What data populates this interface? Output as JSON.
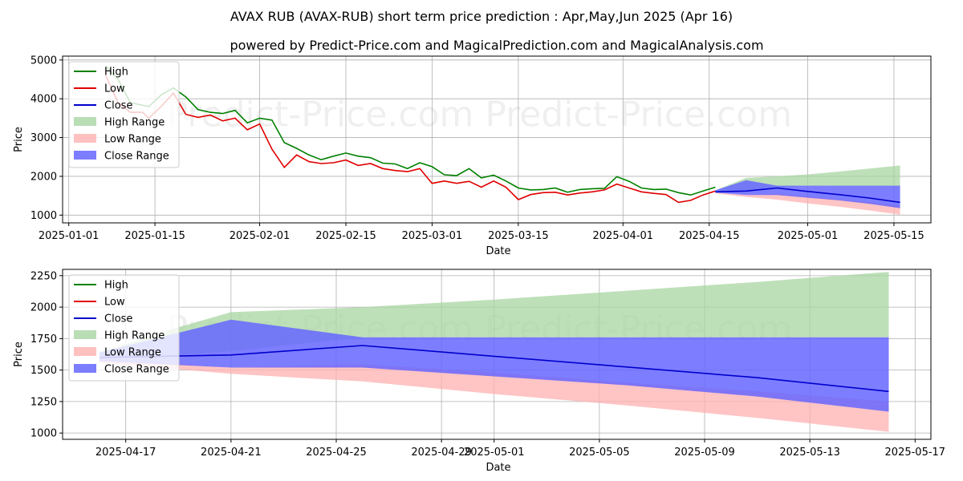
{
  "title_line1": "AVAX RUB (AVAX-RUB) short term price prediction : Apr,May,Jun 2025 (Apr 16)",
  "title_line2": "powered by Predict-Price.com and MagicalPrediction.com and MagicalAnalysis.com",
  "watermark": "Predict-Price.com",
  "colors": {
    "high": "#008000",
    "low": "#e00000",
    "close": "#0000cc",
    "high_range": "#a8d5a2",
    "low_range": "#ffb0b0",
    "close_range": "#6666ff"
  },
  "chart_data": [
    {
      "type": "line",
      "xlabel": "Date",
      "ylabel": "Price",
      "ylim": [
        800,
        5100
      ],
      "yticks": [
        1000,
        2000,
        3000,
        4000,
        5000
      ],
      "xticks": [
        "2025-01-01",
        "2025-01-15",
        "2025-02-01",
        "2025-02-15",
        "2025-03-01",
        "2025-03-15",
        "2025-04-01",
        "2025-04-15",
        "2025-05-01",
        "2025-05-15"
      ],
      "xlim": [
        "2024-12-31",
        "2025-05-21"
      ],
      "legend": [
        "High",
        "Low",
        "Close",
        "High Range",
        "Low Range",
        "Close Range"
      ],
      "legend_position": "top-left",
      "grid": true,
      "series": [
        {
          "name": "High",
          "x": [
            "2025-01-07",
            "2025-01-09",
            "2025-01-11",
            "2025-01-13",
            "2025-01-14",
            "2025-01-16",
            "2025-01-18",
            "2025-01-20",
            "2025-01-22",
            "2025-01-24",
            "2025-01-26",
            "2025-01-28",
            "2025-01-30",
            "2025-02-01",
            "2025-02-03",
            "2025-02-05",
            "2025-02-07",
            "2025-02-09",
            "2025-02-11",
            "2025-02-13",
            "2025-02-15",
            "2025-02-17",
            "2025-02-19",
            "2025-02-21",
            "2025-02-23",
            "2025-02-25",
            "2025-02-27",
            "2025-03-01",
            "2025-03-03",
            "2025-03-05",
            "2025-03-07",
            "2025-03-09",
            "2025-03-11",
            "2025-03-13",
            "2025-03-15",
            "2025-03-17",
            "2025-03-19",
            "2025-03-21",
            "2025-03-23",
            "2025-03-25",
            "2025-03-27",
            "2025-03-29",
            "2025-03-31",
            "2025-04-02",
            "2025-04-04",
            "2025-04-06",
            "2025-04-08",
            "2025-04-10",
            "2025-04-12",
            "2025-04-14",
            "2025-04-16"
          ],
          "values": [
            4850,
            4500,
            3900,
            3830,
            3800,
            4100,
            4280,
            4050,
            3720,
            3650,
            3620,
            3700,
            3380,
            3500,
            3450,
            2870,
            2720,
            2550,
            2430,
            2520,
            2600,
            2520,
            2480,
            2340,
            2320,
            2200,
            2350,
            2250,
            2040,
            2020,
            2200,
            1960,
            2030,
            1880,
            1700,
            1650,
            1660,
            1700,
            1590,
            1660,
            1680,
            1690,
            1990,
            1870,
            1700,
            1660,
            1670,
            1580,
            1520,
            1620,
            1720
          ]
        },
        {
          "name": "Low",
          "x": [
            "2025-01-07",
            "2025-01-09",
            "2025-01-11",
            "2025-01-13",
            "2025-01-14",
            "2025-01-16",
            "2025-01-18",
            "2025-01-20",
            "2025-01-22",
            "2025-01-24",
            "2025-01-26",
            "2025-01-28",
            "2025-01-30",
            "2025-02-01",
            "2025-02-03",
            "2025-02-05",
            "2025-02-07",
            "2025-02-09",
            "2025-02-11",
            "2025-02-13",
            "2025-02-15",
            "2025-02-17",
            "2025-02-19",
            "2025-02-21",
            "2025-02-23",
            "2025-02-25",
            "2025-02-27",
            "2025-03-01",
            "2025-03-03",
            "2025-03-05",
            "2025-03-07",
            "2025-03-09",
            "2025-03-11",
            "2025-03-13",
            "2025-03-15",
            "2025-03-17",
            "2025-03-19",
            "2025-03-21",
            "2025-03-23",
            "2025-03-25",
            "2025-03-27",
            "2025-03-29",
            "2025-03-31",
            "2025-04-02",
            "2025-04-04",
            "2025-04-06",
            "2025-04-08",
            "2025-04-10",
            "2025-04-12",
            "2025-04-14",
            "2025-04-16"
          ],
          "values": [
            4600,
            3900,
            3650,
            3650,
            3500,
            3800,
            4150,
            3600,
            3520,
            3580,
            3430,
            3500,
            3200,
            3350,
            2700,
            2230,
            2550,
            2380,
            2330,
            2350,
            2420,
            2280,
            2330,
            2200,
            2150,
            2120,
            2200,
            1820,
            1880,
            1820,
            1870,
            1720,
            1880,
            1720,
            1400,
            1530,
            1580,
            1590,
            1520,
            1570,
            1600,
            1650,
            1800,
            1700,
            1600,
            1560,
            1530,
            1330,
            1380,
            1520,
            1620
          ]
        },
        {
          "name": "Close",
          "x": [
            "2025-04-16",
            "2025-04-21",
            "2025-04-26",
            "2025-05-01",
            "2025-05-06",
            "2025-05-11",
            "2025-05-16"
          ],
          "values": [
            1600,
            1620,
            1700,
            1610,
            1530,
            1440,
            1330
          ]
        },
        {
          "name": "High Range",
          "x": [
            "2025-04-16",
            "2025-04-21",
            "2025-04-26",
            "2025-05-01",
            "2025-05-06",
            "2025-05-11",
            "2025-05-16"
          ],
          "upper": [
            1640,
            1960,
            2000,
            2050,
            2120,
            2200,
            2280
          ],
          "lower": [
            1580,
            1620,
            1700,
            1750,
            1750,
            1750,
            1750
          ]
        },
        {
          "name": "Low Range",
          "x": [
            "2025-04-16",
            "2025-04-21",
            "2025-04-26",
            "2025-05-01",
            "2025-05-06",
            "2025-05-11",
            "2025-05-16"
          ],
          "upper": [
            1580,
            1520,
            1550,
            1480,
            1400,
            1330,
            1250
          ],
          "lower": [
            1560,
            1470,
            1400,
            1300,
            1220,
            1120,
            1010
          ]
        },
        {
          "name": "Close Range",
          "x": [
            "2025-04-16",
            "2025-04-21",
            "2025-04-26",
            "2025-05-01",
            "2025-05-06",
            "2025-05-11",
            "2025-05-16"
          ],
          "upper": [
            1640,
            1900,
            1760,
            1760,
            1760,
            1760,
            1760
          ],
          "lower": [
            1580,
            1520,
            1520,
            1450,
            1380,
            1290,
            1180
          ]
        }
      ]
    },
    {
      "type": "line",
      "xlabel": "Date",
      "ylabel": "Price",
      "ylim": [
        950,
        2300
      ],
      "yticks": [
        1000,
        1250,
        1500,
        1750,
        2000,
        2250
      ],
      "xticks": [
        "2025-04-17",
        "2025-04-21",
        "2025-04-25",
        "2025-04-29",
        "2025-05-01",
        "2025-05-05",
        "2025-05-09",
        "2025-05-13",
        "2025-05-17"
      ],
      "xlim": [
        "2025-04-14.6",
        "2025-05-17.6"
      ],
      "legend": [
        "High",
        "Low",
        "Close",
        "High Range",
        "Low Range",
        "Close Range"
      ],
      "legend_position": "top-left",
      "grid": true,
      "series": [
        {
          "name": "Close",
          "x": [
            "2025-04-16",
            "2025-04-21",
            "2025-04-26",
            "2025-05-01",
            "2025-05-06",
            "2025-05-11",
            "2025-05-16"
          ],
          "values": [
            1600,
            1620,
            1695,
            1610,
            1525,
            1440,
            1330
          ]
        },
        {
          "name": "High Range",
          "x": [
            "2025-04-16",
            "2025-04-19",
            "2025-04-21",
            "2025-04-26",
            "2025-05-01",
            "2025-05-06",
            "2025-05-11",
            "2025-05-16"
          ],
          "upper": [
            1640,
            1840,
            1960,
            2000,
            2060,
            2130,
            2200,
            2280
          ],
          "lower": [
            1580,
            1620,
            1650,
            1760,
            1760,
            1760,
            1760,
            1760
          ]
        },
        {
          "name": "Low Range",
          "x": [
            "2025-04-16",
            "2025-04-21",
            "2025-04-26",
            "2025-05-01",
            "2025-05-06",
            "2025-05-11",
            "2025-05-16"
          ],
          "upper": [
            1590,
            1520,
            1545,
            1480,
            1400,
            1330,
            1250
          ],
          "lower": [
            1560,
            1470,
            1410,
            1310,
            1220,
            1120,
            1010
          ]
        },
        {
          "name": "Close Range",
          "x": [
            "2025-04-16",
            "2025-04-21",
            "2025-04-26",
            "2025-05-01",
            "2025-05-06",
            "2025-05-11",
            "2025-05-16"
          ],
          "upper": [
            1640,
            1900,
            1760,
            1760,
            1760,
            1760,
            1760
          ],
          "lower": [
            1570,
            1520,
            1520,
            1450,
            1380,
            1290,
            1170
          ]
        }
      ]
    }
  ]
}
